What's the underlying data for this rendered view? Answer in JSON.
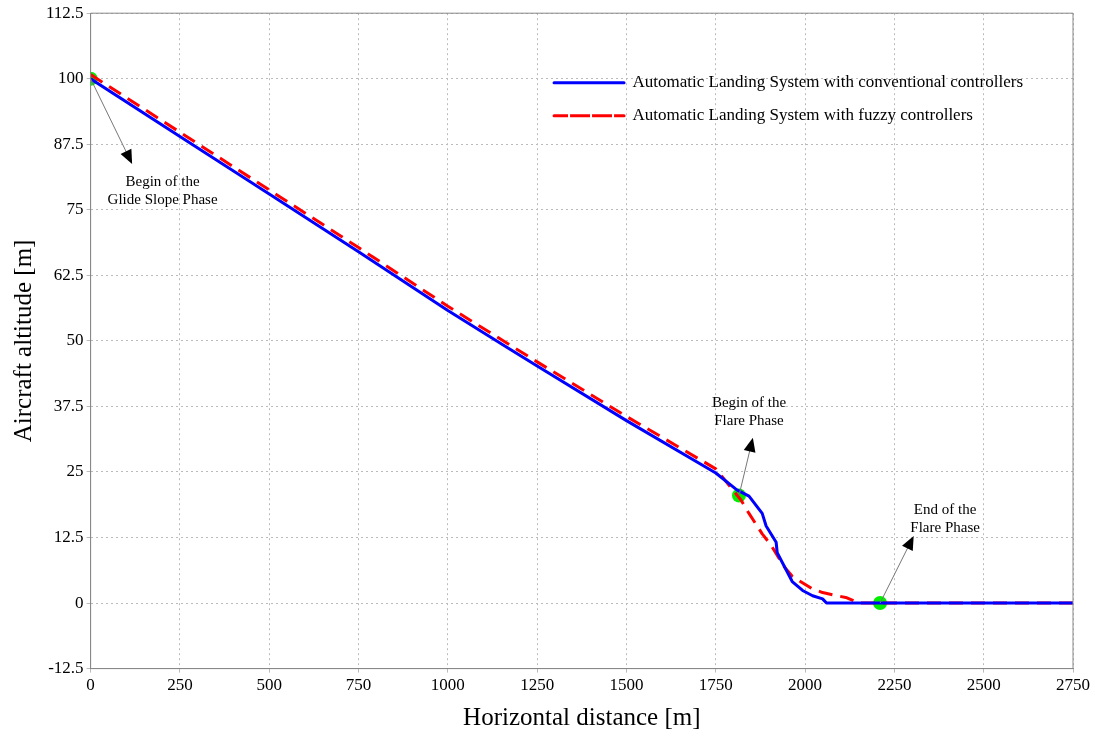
{
  "chart_data": {
    "type": "line",
    "xlabel": "Horizontal distance [m]",
    "ylabel": "Aircraft altitude [m]",
    "xlim": [
      0,
      2750
    ],
    "xticks": [
      0,
      250,
      500,
      750,
      1000,
      1250,
      1500,
      1750,
      2000,
      2250,
      2500,
      2750
    ],
    "ylim": [
      -12.5,
      112.5
    ],
    "yticks": [
      -12.5,
      0,
      12.5,
      25,
      37.5,
      50,
      62.5,
      75,
      87.5,
      100,
      112.5
    ],
    "grid": true,
    "legend": "top right",
    "marker": "none",
    "series": [
      {
        "name": "Automatic Landing System with conventional controllers",
        "color": "#0000ff",
        "line_style": "solid",
        "x": [
          0,
          250,
          500,
          750,
          1000,
          1250,
          1500,
          1750,
          1809,
          1843,
          1880,
          1891,
          1919,
          1922,
          1964,
          1993,
          2021,
          2049,
          2060,
          2750
        ],
        "values": [
          100,
          89,
          78,
          67,
          55.8,
          45.2,
          34.8,
          24.8,
          21.6,
          20.4,
          17.1,
          14.7,
          11.6,
          9.6,
          4.1,
          2.4,
          1.4,
          0.8,
          0,
          0
        ]
      },
      {
        "name": "Automatic Landing System with fuzzy controllers",
        "color": "#ff0000",
        "line_style": "dashed",
        "x": [
          0,
          250,
          500,
          750,
          1000,
          1250,
          1500,
          1750,
          1820,
          1843,
          1880,
          1905,
          1942,
          1964,
          2018,
          2049,
          2117,
          2150,
          2750
        ],
        "values": [
          100.8,
          89.8,
          78.8,
          67.8,
          56.6,
          46,
          35.6,
          25.6,
          19.7,
          17.1,
          13.2,
          11,
          6.9,
          5.1,
          2.8,
          2,
          1,
          0,
          0
        ]
      },
      {
        "type": "scatter",
        "color": "#00ee00",
        "marker": "circle",
        "x": [
          0,
          1815,
          2210
        ],
        "values": [
          100,
          20.5,
          0
        ]
      }
    ],
    "annotations": [
      {
        "text": "Begin of the Glide Slope Phase",
        "x": 0,
        "y": 100
      },
      {
        "text": "Begin of the Flare Phase",
        "x": 1815,
        "y": 20.5
      },
      {
        "text": "End of the Flare Phase",
        "x": 2210,
        "y": 0
      }
    ]
  }
}
